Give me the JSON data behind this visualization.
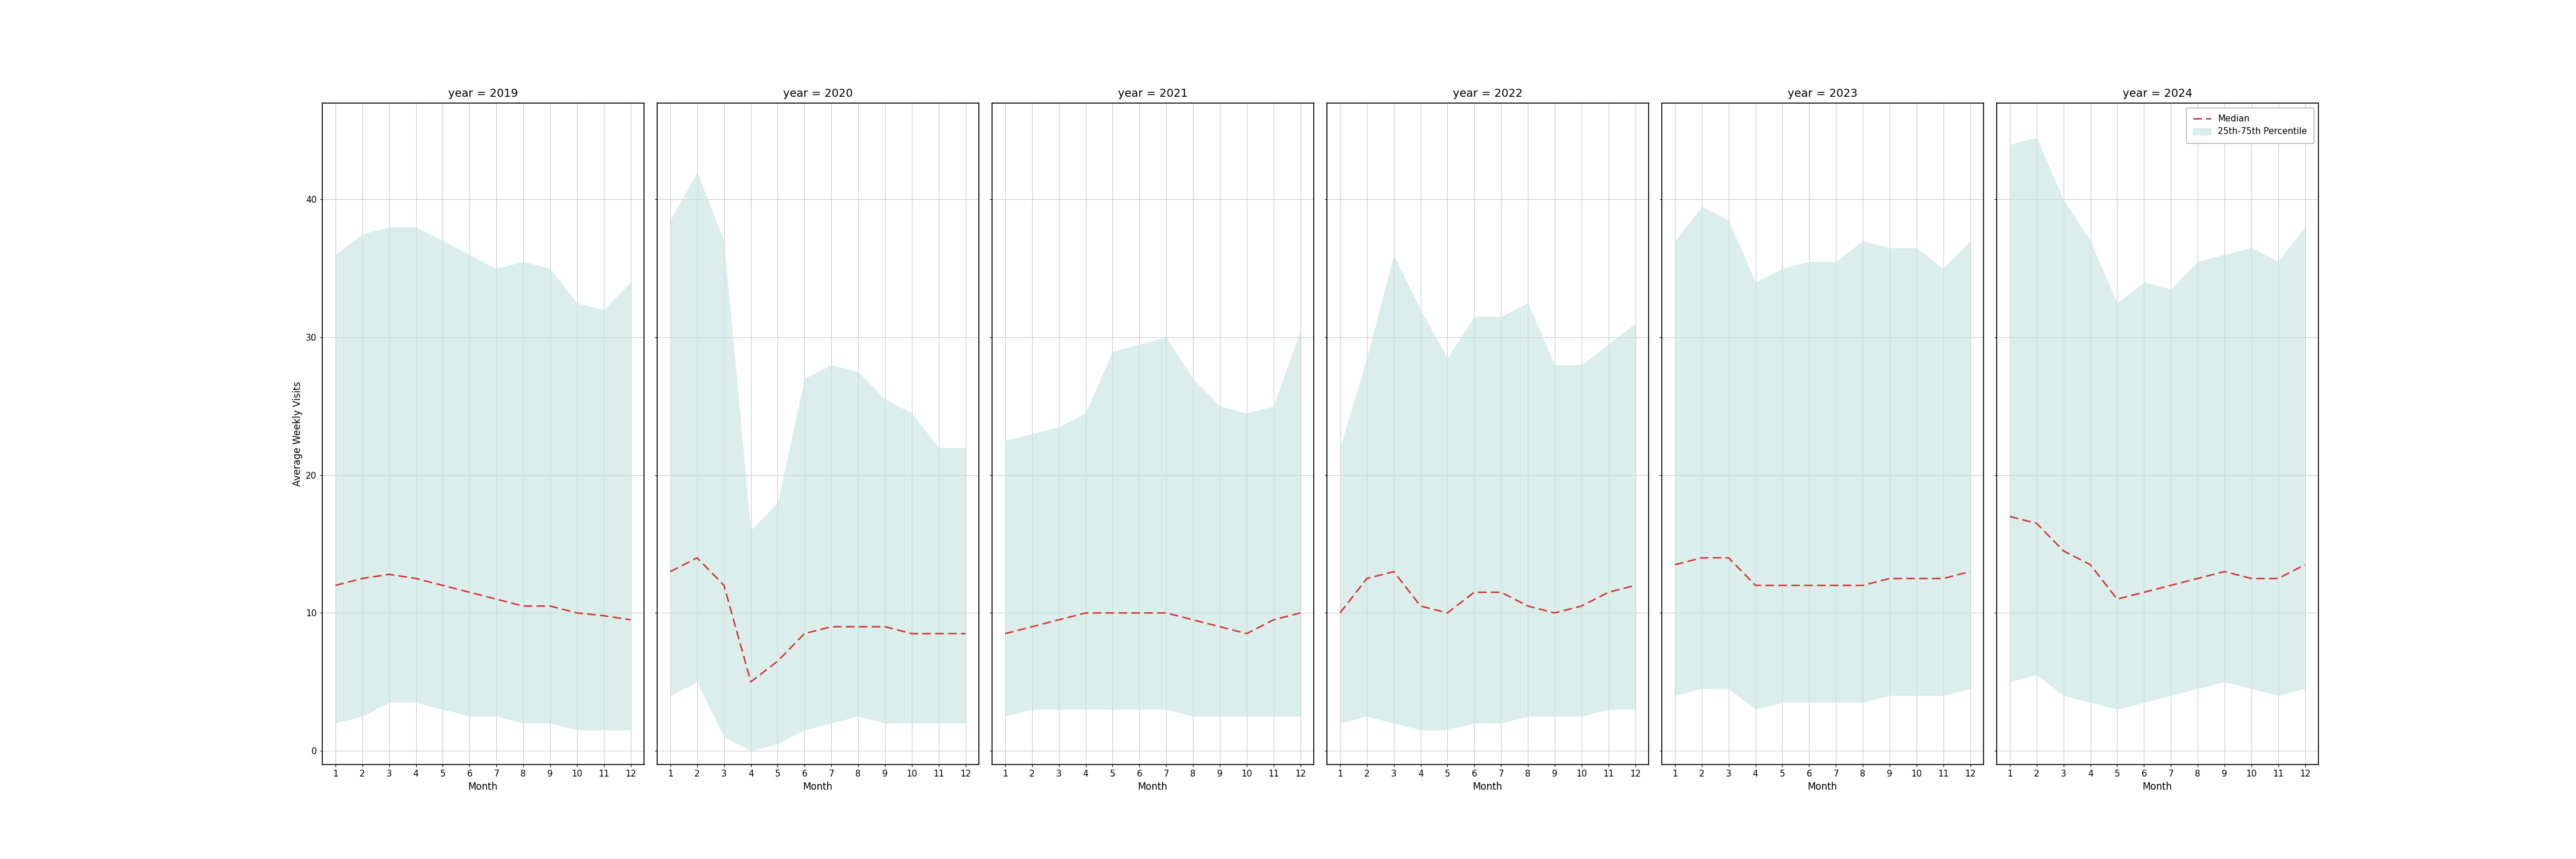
{
  "years": [
    2019,
    2020,
    2021,
    2022,
    2023,
    2024
  ],
  "months": [
    1,
    2,
    3,
    4,
    5,
    6,
    7,
    8,
    9,
    10,
    11,
    12
  ],
  "median": {
    "2019": [
      12.0,
      12.5,
      12.8,
      12.5,
      12.0,
      11.5,
      11.0,
      10.5,
      10.5,
      10.0,
      9.8,
      9.5
    ],
    "2020": [
      13.0,
      14.0,
      12.0,
      5.0,
      6.5,
      8.5,
      9.0,
      9.0,
      9.0,
      8.5,
      8.5,
      8.5
    ],
    "2021": [
      8.5,
      9.0,
      9.5,
      10.0,
      10.0,
      10.0,
      10.0,
      9.5,
      9.0,
      8.5,
      9.5,
      10.0
    ],
    "2022": [
      10.0,
      12.5,
      13.0,
      10.5,
      10.0,
      11.5,
      11.5,
      10.5,
      10.0,
      10.5,
      11.5,
      12.0
    ],
    "2023": [
      13.5,
      14.0,
      14.0,
      12.0,
      12.0,
      12.0,
      12.0,
      12.0,
      12.5,
      12.5,
      12.5,
      13.0
    ],
    "2024": [
      17.0,
      16.5,
      14.5,
      13.5,
      11.0,
      11.5,
      12.0,
      12.5,
      13.0,
      12.5,
      12.5,
      13.5
    ]
  },
  "p25": {
    "2019": [
      2.0,
      2.5,
      3.5,
      3.5,
      3.0,
      2.5,
      2.5,
      2.0,
      2.0,
      1.5,
      1.5,
      1.5
    ],
    "2020": [
      4.0,
      5.0,
      1.0,
      0.0,
      0.5,
      1.5,
      2.0,
      2.5,
      2.0,
      2.0,
      2.0,
      2.0
    ],
    "2021": [
      2.5,
      3.0,
      3.0,
      3.0,
      3.0,
      3.0,
      3.0,
      2.5,
      2.5,
      2.5,
      2.5,
      2.5
    ],
    "2022": [
      2.0,
      2.5,
      2.0,
      1.5,
      1.5,
      2.0,
      2.0,
      2.5,
      2.5,
      2.5,
      3.0,
      3.0
    ],
    "2023": [
      4.0,
      4.5,
      4.5,
      3.0,
      3.5,
      3.5,
      3.5,
      3.5,
      4.0,
      4.0,
      4.0,
      4.5
    ],
    "2024": [
      5.0,
      5.5,
      4.0,
      3.5,
      3.0,
      3.5,
      4.0,
      4.5,
      5.0,
      4.5,
      4.0,
      4.5
    ]
  },
  "p75": {
    "2019": [
      36.0,
      37.5,
      38.0,
      38.0,
      37.0,
      36.0,
      35.0,
      35.5,
      35.0,
      32.5,
      32.0,
      34.0
    ],
    "2020": [
      38.5,
      42.0,
      37.0,
      16.0,
      18.0,
      27.0,
      28.0,
      27.5,
      25.5,
      24.5,
      22.0,
      22.0
    ],
    "2021": [
      22.5,
      23.0,
      23.5,
      24.5,
      29.0,
      29.5,
      30.0,
      27.0,
      25.0,
      24.5,
      25.0,
      30.5
    ],
    "2022": [
      22.0,
      28.5,
      36.0,
      32.0,
      28.5,
      31.5,
      31.5,
      32.5,
      28.0,
      28.0,
      29.5,
      31.0
    ],
    "2023": [
      37.0,
      39.5,
      38.5,
      34.0,
      35.0,
      35.5,
      35.5,
      37.0,
      36.5,
      36.5,
      35.0,
      37.0
    ],
    "2024": [
      44.0,
      44.5,
      40.0,
      37.0,
      32.5,
      34.0,
      33.5,
      35.5,
      36.0,
      36.5,
      35.5,
      38.0
    ]
  },
  "fill_color": "#c8e6e1",
  "fill_alpha": 0.65,
  "line_color": "#d32f2f",
  "ylabel": "Average Weekly Visits",
  "xlabel": "Month",
  "yticks": [
    0,
    10,
    20,
    30,
    40
  ],
  "xticks": [
    1,
    2,
    3,
    4,
    5,
    6,
    7,
    8,
    9,
    10,
    11,
    12
  ],
  "ylim": [
    -1,
    47
  ],
  "legend_median": "Median",
  "legend_fill": "25th-75th Percentile",
  "background_color": "white",
  "grid_color": "#cccccc",
  "title_fontsize": 14,
  "label_fontsize": 12,
  "tick_fontsize": 11
}
